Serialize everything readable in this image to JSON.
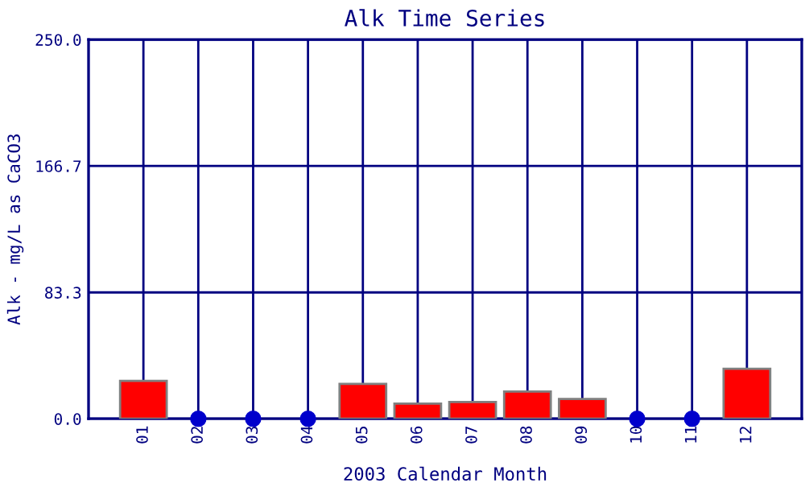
{
  "chart_data": {
    "type": "bar",
    "title": "Alk Time Series",
    "xlabel": "2003 Calendar Month",
    "ylabel": "Alk - mg/L as CaCO3",
    "categories": [
      "01",
      "02",
      "03",
      "04",
      "05",
      "06",
      "07",
      "08",
      "09",
      "10",
      "11",
      "12"
    ],
    "series": [
      {
        "color": "#ff0000",
        "values": [
          25,
          null,
          null,
          null,
          23,
          10,
          11,
          18,
          13,
          null,
          null,
          33
        ]
      },
      {
        "type": "scatter",
        "color": "#0000cc",
        "marker": "circle",
        "x": [
          "02",
          "03",
          "04",
          "10",
          "11"
        ],
        "values": [
          0,
          0,
          0,
          0,
          0
        ]
      }
    ],
    "ylim": [
      0,
      250
    ],
    "yticks": [
      {
        "value": 0,
        "label": "0.0"
      },
      {
        "value": 83.3,
        "label": "83.3"
      },
      {
        "value": 166.7,
        "label": "166.7"
      },
      {
        "value": 250,
        "label": "250.0"
      }
    ],
    "grid": true
  }
}
